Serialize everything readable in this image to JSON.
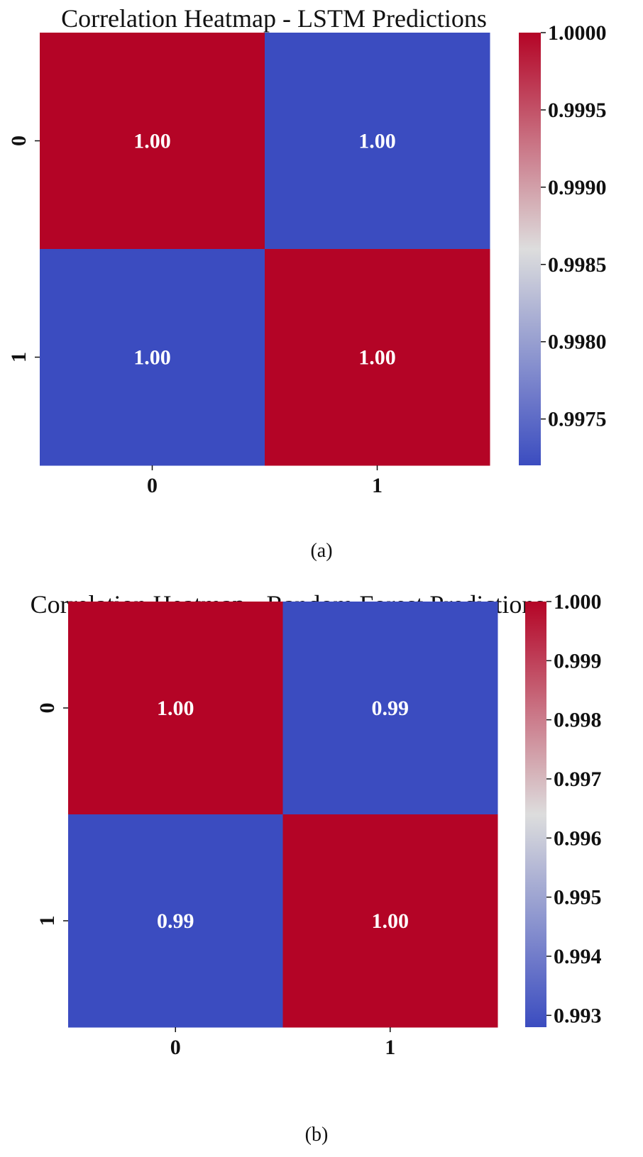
{
  "chart_data": [
    {
      "type": "heatmap",
      "title": "Correlation Heatmap - LSTM Predictions",
      "caption": "(a)",
      "x_categories": [
        "0",
        "1"
      ],
      "y_categories": [
        "0",
        "1"
      ],
      "values": [
        [
          1.0,
          0.9972
        ],
        [
          0.9972,
          1.0
        ]
      ],
      "cell_labels": [
        [
          "1.00",
          "1.00"
        ],
        [
          "1.00",
          "1.00"
        ]
      ],
      "colorbar": {
        "range": [
          0.9972,
          1.0
        ],
        "ticks": [
          1.0,
          0.9995,
          0.999,
          0.9985,
          0.998,
          0.9975
        ],
        "tick_labels": [
          "1.0000",
          "0.9995",
          "0.9990",
          "0.9985",
          "0.9980",
          "0.9975"
        ]
      },
      "colormap": "coolwarm",
      "colors": {
        "low": "#3b4cc0",
        "mid": "#dddddd",
        "high": "#b40426"
      }
    },
    {
      "type": "heatmap",
      "title": "Correlation Heatmap - Random Forest Predictions",
      "caption": "(b)",
      "x_categories": [
        "0",
        "1"
      ],
      "y_categories": [
        "0",
        "1"
      ],
      "values": [
        [
          1.0,
          0.9928
        ],
        [
          0.9928,
          1.0
        ]
      ],
      "cell_labels": [
        [
          "1.00",
          "0.99"
        ],
        [
          "0.99",
          "1.00"
        ]
      ],
      "colorbar": {
        "range": [
          0.9928,
          1.0
        ],
        "ticks": [
          1.0,
          0.999,
          0.998,
          0.997,
          0.996,
          0.995,
          0.994,
          0.993
        ],
        "tick_labels": [
          "1.000",
          "0.999",
          "0.998",
          "0.997",
          "0.996",
          "0.995",
          "0.994",
          "0.993"
        ]
      },
      "colormap": "coolwarm",
      "colors": {
        "low": "#3b4cc0",
        "mid": "#dddddd",
        "high": "#b40426"
      }
    }
  ]
}
